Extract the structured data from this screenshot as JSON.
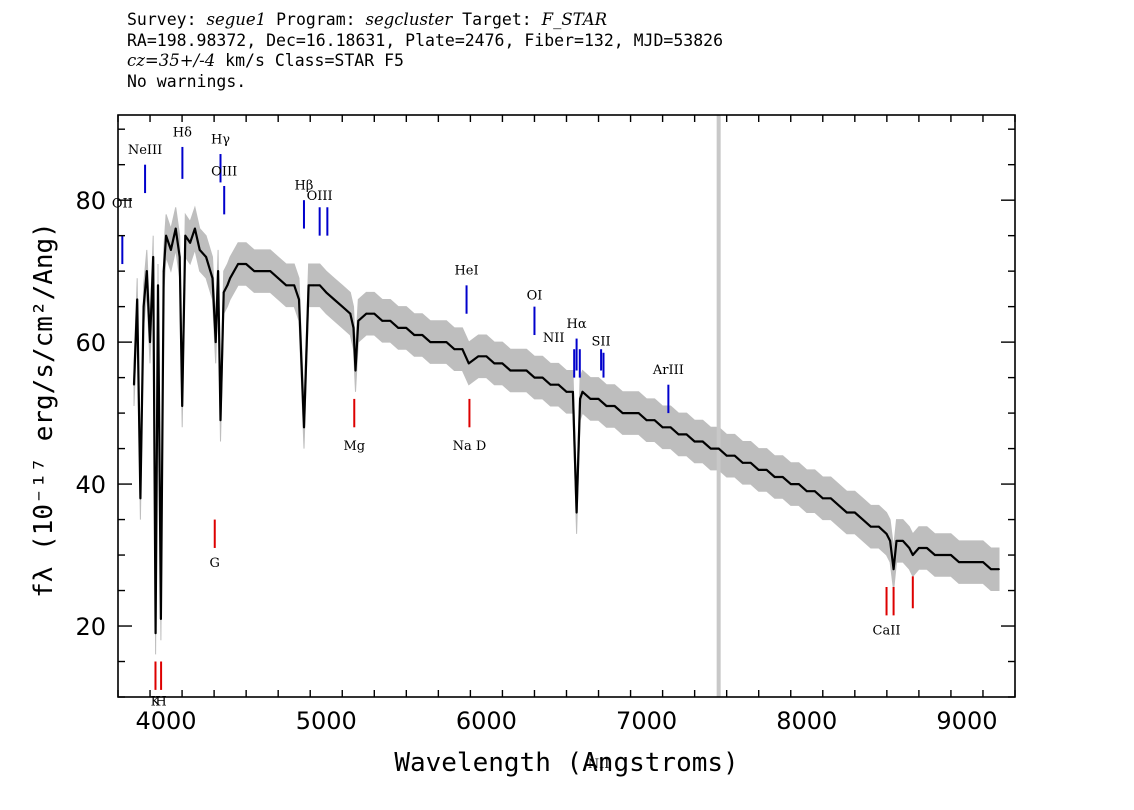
{
  "header": {
    "survey_label": "Survey: ",
    "survey": "segue1",
    "program_label": " Program: ",
    "program": "segcluster",
    "target_label": " Target: ",
    "target": "F_STAR",
    "coords": "RA=198.98372, Dec=16.18631, Plate=2476, Fiber=132, MJD=53826",
    "cz": "cz=35+/-4",
    "cz_units": " km/s Class=STAR F5",
    "warnings": "No warnings."
  },
  "colors": {
    "spectrum": "#000000",
    "error_band": "#bebebe",
    "emission_line": "#0000cc",
    "absorption_line": "#dd0000",
    "marker": "#c8c8c8"
  },
  "chart_data": {
    "type": "line",
    "xlabel": "Wavelength (Angstroms)",
    "ylabel": "fλ (10⁻¹⁷ erg/s/cm²/Ang)",
    "xlim": [
      3700,
      9300
    ],
    "ylim": [
      10,
      92
    ],
    "xticks": [
      4000,
      5000,
      6000,
      7000,
      8000,
      9000
    ],
    "yticks": [
      20,
      40,
      60,
      80
    ],
    "vertical_marker_x": 7450,
    "series": [
      {
        "points": [
          [
            3800,
            54
          ],
          [
            3820,
            66
          ],
          [
            3840,
            38
          ],
          [
            3860,
            65
          ],
          [
            3880,
            70
          ],
          [
            3900,
            60
          ],
          [
            3920,
            72
          ],
          [
            3935,
            19
          ],
          [
            3950,
            68
          ],
          [
            3968,
            21
          ],
          [
            3985,
            70
          ],
          [
            4000,
            75
          ],
          [
            4030,
            73
          ],
          [
            4060,
            76
          ],
          [
            4085,
            72
          ],
          [
            4101,
            51
          ],
          [
            4120,
            75
          ],
          [
            4150,
            74
          ],
          [
            4180,
            76
          ],
          [
            4210,
            73
          ],
          [
            4250,
            72
          ],
          [
            4290,
            69
          ],
          [
            4310,
            60
          ],
          [
            4325,
            70
          ],
          [
            4340,
            49
          ],
          [
            4360,
            67
          ],
          [
            4383,
            68
          ],
          [
            4400,
            69
          ],
          [
            4450,
            71
          ],
          [
            4500,
            71
          ],
          [
            4550,
            70
          ],
          [
            4600,
            70
          ],
          [
            4650,
            70
          ],
          [
            4700,
            69
          ],
          [
            4750,
            68
          ],
          [
            4800,
            68
          ],
          [
            4830,
            66
          ],
          [
            4861,
            48
          ],
          [
            4890,
            68
          ],
          [
            4920,
            68
          ],
          [
            4960,
            68
          ],
          [
            5000,
            67
          ],
          [
            5050,
            66
          ],
          [
            5100,
            65
          ],
          [
            5150,
            64
          ],
          [
            5170,
            62
          ],
          [
            5183,
            56
          ],
          [
            5200,
            63
          ],
          [
            5250,
            64
          ],
          [
            5300,
            64
          ],
          [
            5350,
            63
          ],
          [
            5400,
            63
          ],
          [
            5450,
            62
          ],
          [
            5500,
            62
          ],
          [
            5550,
            61
          ],
          [
            5600,
            61
          ],
          [
            5650,
            60
          ],
          [
            5700,
            60
          ],
          [
            5750,
            60
          ],
          [
            5800,
            59
          ],
          [
            5850,
            59
          ],
          [
            5890,
            57
          ],
          [
            5950,
            58
          ],
          [
            6000,
            58
          ],
          [
            6050,
            57
          ],
          [
            6100,
            57
          ],
          [
            6150,
            56
          ],
          [
            6200,
            56
          ],
          [
            6250,
            56
          ],
          [
            6300,
            55
          ],
          [
            6350,
            55
          ],
          [
            6400,
            54
          ],
          [
            6450,
            54
          ],
          [
            6500,
            53
          ],
          [
            6540,
            53
          ],
          [
            6563,
            36
          ],
          [
            6585,
            52
          ],
          [
            6600,
            53
          ],
          [
            6650,
            52
          ],
          [
            6700,
            52
          ],
          [
            6750,
            51
          ],
          [
            6800,
            51
          ],
          [
            6850,
            50
          ],
          [
            6900,
            50
          ],
          [
            6950,
            50
          ],
          [
            7000,
            49
          ],
          [
            7050,
            49
          ],
          [
            7100,
            48
          ],
          [
            7150,
            48
          ],
          [
            7200,
            47
          ],
          [
            7250,
            47
          ],
          [
            7300,
            46
          ],
          [
            7350,
            46
          ],
          [
            7400,
            45
          ],
          [
            7450,
            45
          ],
          [
            7500,
            44
          ],
          [
            7550,
            44
          ],
          [
            7600,
            43
          ],
          [
            7650,
            43
          ],
          [
            7700,
            42
          ],
          [
            7750,
            42
          ],
          [
            7800,
            41
          ],
          [
            7850,
            41
          ],
          [
            7900,
            40
          ],
          [
            7950,
            40
          ],
          [
            8000,
            39
          ],
          [
            8050,
            39
          ],
          [
            8100,
            38
          ],
          [
            8150,
            38
          ],
          [
            8200,
            37
          ],
          [
            8250,
            36
          ],
          [
            8300,
            36
          ],
          [
            8350,
            35
          ],
          [
            8400,
            34
          ],
          [
            8450,
            34
          ],
          [
            8498,
            33
          ],
          [
            8520,
            32
          ],
          [
            8542,
            28
          ],
          [
            8560,
            32
          ],
          [
            8600,
            32
          ],
          [
            8640,
            31
          ],
          [
            8662,
            30
          ],
          [
            8700,
            31
          ],
          [
            8750,
            31
          ],
          [
            8800,
            30
          ],
          [
            8850,
            30
          ],
          [
            8900,
            30
          ],
          [
            8950,
            29
          ],
          [
            9000,
            29
          ],
          [
            9050,
            29
          ],
          [
            9100,
            29
          ],
          [
            9150,
            28
          ],
          [
            9200,
            28
          ]
        ],
        "error_band": 3
      }
    ],
    "emission_lines": [
      {
        "label": "OII",
        "x": 3727,
        "y1": 71,
        "y2": 75,
        "label_y": 79
      },
      {
        "label": "NeIII",
        "x": 3869,
        "y1": 81,
        "y2": 85,
        "label_y": 86.5
      },
      {
        "label": "Hδ",
        "x": 4102,
        "y1": 83,
        "y2": 87.5,
        "label_y": 89
      },
      {
        "label": "Hγ",
        "x": 4340,
        "y1": 82.5,
        "y2": 86.5,
        "label_y": 88
      },
      {
        "label": "OIII",
        "x": 4363,
        "y1": 78,
        "y2": 82,
        "label_y": 83.5
      },
      {
        "label": "Hβ",
        "x": 4861,
        "y1": 76,
        "y2": 80,
        "label_y": 81.5
      },
      {
        "label": "OIII",
        "x": 4959,
        "y1": 75,
        "y2": 79,
        "label_y": 80
      },
      {
        "label": "",
        "x": 5007,
        "y1": 75,
        "y2": 79,
        "label_y": 0
      },
      {
        "label": "HeI",
        "x": 5876,
        "y1": 64,
        "y2": 68,
        "label_y": 69.5
      },
      {
        "label": "OI",
        "x": 6300,
        "y1": 61,
        "y2": 65,
        "label_y": 66
      },
      {
        "label": "NII",
        "x": 6548,
        "y1": 55,
        "y2": 59,
        "label_y": 60
      },
      {
        "label": "Hα",
        "x": 6563,
        "y1": 56,
        "y2": 60.5,
        "label_y": 62
      },
      {
        "label": "NII",
        "x": 6583,
        "y1": 55,
        "y2": 59,
        "label_y": 0
      },
      {
        "label": "SII",
        "x": 6716,
        "y1": 56,
        "y2": 59,
        "label_y": 59.5
      },
      {
        "label": "",
        "x": 6731,
        "y1": 55,
        "y2": 58.5,
        "label_y": 0
      },
      {
        "label": "ArIII",
        "x": 7136,
        "y1": 50,
        "y2": 54,
        "label_y": 55.5
      }
    ],
    "emission_label_overrides": [
      {
        "label": "NII",
        "x": 6420
      },
      {
        "label": "NII",
        "x": 6700
      }
    ],
    "absorption_lines": [
      {
        "label": "K",
        "x": 3934,
        "y1": 11,
        "y2": 15,
        "label_y": 9.5
      },
      {
        "label": "H",
        "x": 3969,
        "y1": 11,
        "y2": 15,
        "label_y": 9.5
      },
      {
        "label": "G",
        "x": 4304,
        "y1": 31,
        "y2": 35,
        "label_y": 29
      },
      {
        "label": "Mg",
        "x": 5175,
        "y1": 48,
        "y2": 52,
        "label_y": 45.5
      },
      {
        "label": "Na D",
        "x": 5894,
        "y1": 48,
        "y2": 52,
        "label_y": 45.5
      },
      {
        "label": "CaII",
        "x": 8498,
        "y1": 21.5,
        "y2": 25.5,
        "label_y": 19.5
      },
      {
        "label": "",
        "x": 8542,
        "y1": 21.5,
        "y2": 25.5,
        "label_y": 0
      },
      {
        "label": "",
        "x": 8662,
        "y1": 22.5,
        "y2": 27,
        "label_y": 0
      }
    ]
  }
}
